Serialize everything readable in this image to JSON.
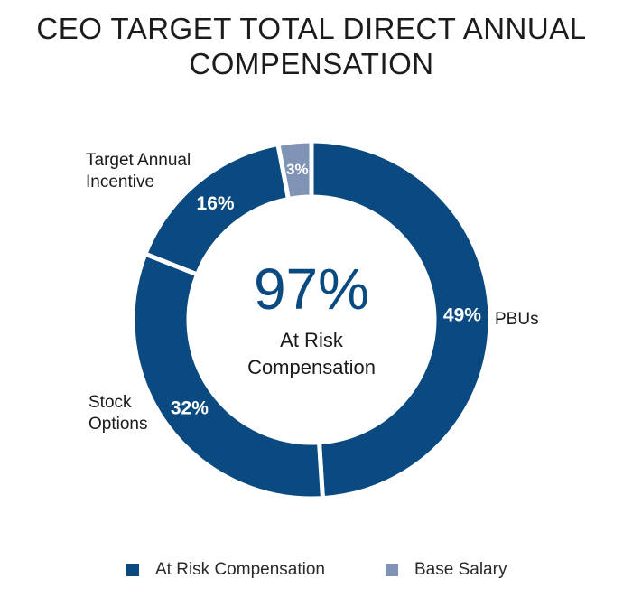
{
  "title": [
    "CEO TARGET TOTAL DIRECT ANNUAL",
    "COMPENSATION"
  ],
  "center": {
    "value": "97%",
    "label": [
      "At Risk",
      "Compensation"
    ]
  },
  "colors": {
    "at_risk": "#0a4a80",
    "base": "#7f93b5",
    "gap": "#ffffff"
  },
  "chart_data": {
    "type": "pie",
    "variant": "donut",
    "title": "CEO TARGET TOTAL DIRECT ANNUAL COMPENSATION",
    "slices": [
      {
        "name": "PBUs",
        "value": 49,
        "label": "49%",
        "group": "At Risk Compensation"
      },
      {
        "name": "Stock Options",
        "value": 32,
        "label": "32%",
        "group": "At Risk Compensation"
      },
      {
        "name": "Target Annual Incentive",
        "value": 16,
        "label": "16%",
        "group": "At Risk Compensation"
      },
      {
        "name": "Base Salary",
        "value": 3,
        "label": "3%",
        "group": "Base Salary"
      }
    ],
    "legend": [
      "At Risk Compensation",
      "Base Salary"
    ]
  },
  "external_labels": {
    "pbus": [
      "PBUs"
    ],
    "stock": [
      "Stock",
      "Options"
    ],
    "tai": [
      "Target Annual",
      "Incentive"
    ]
  }
}
